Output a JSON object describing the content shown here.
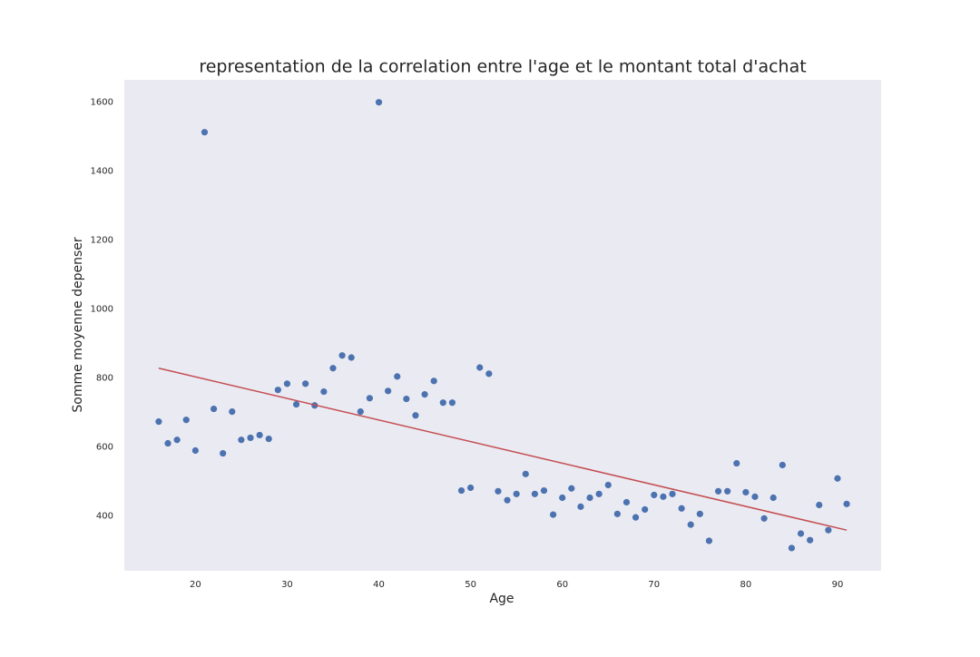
{
  "chart_data": {
    "type": "scatter",
    "title": "representation de la correlation entre l'age et le montant total d'achat",
    "x_label": "Age",
    "y_label": "Somme moyenne depenser",
    "xlim": [
      12.25,
      94.75
    ],
    "ylim": [
      240,
      1665
    ],
    "xticks": [
      20,
      30,
      40,
      50,
      60,
      70,
      80,
      90
    ],
    "yticks": [
      400,
      600,
      800,
      1000,
      1200,
      1400,
      1600
    ],
    "grid": false,
    "background": "#eaeaf2",
    "series": [
      {
        "type": "scatter",
        "color": "#4c72b0",
        "x": [
          16,
          17,
          18,
          19,
          20,
          21,
          22,
          23,
          24,
          25,
          26,
          27,
          28,
          29,
          30,
          31,
          32,
          33,
          34,
          35,
          36,
          37,
          38,
          39,
          40,
          41,
          42,
          43,
          44,
          45,
          46,
          47,
          48,
          49,
          50,
          51,
          52,
          53,
          54,
          55,
          56,
          57,
          58,
          59,
          60,
          61,
          62,
          63,
          64,
          65,
          66,
          67,
          68,
          69,
          70,
          71,
          72,
          73,
          74,
          75,
          76,
          77,
          78,
          79,
          80,
          81,
          82,
          83,
          84,
          85,
          86,
          87,
          88,
          89,
          90,
          91
        ],
        "values": [
          673,
          610,
          620,
          678,
          589,
          1513,
          710,
          581,
          702,
          620,
          626,
          634,
          623,
          765,
          783,
          723,
          783,
          720,
          760,
          828,
          865,
          859,
          702,
          741,
          1600,
          762,
          804,
          739,
          691,
          752,
          791,
          728,
          728,
          473,
          481,
          830,
          812,
          471,
          445,
          463,
          521,
          463,
          473,
          403,
          452,
          479,
          426,
          452,
          463,
          489,
          405,
          439,
          395,
          418,
          460,
          455,
          463,
          421,
          374,
          405,
          327,
          471,
          471,
          552,
          468,
          455,
          392,
          452,
          547,
          306,
          348,
          329,
          431,
          358,
          508,
          434
        ]
      },
      {
        "type": "line",
        "color": "#c44e52",
        "x": [
          16,
          91
        ],
        "values": [
          828,
          358
        ]
      }
    ]
  }
}
